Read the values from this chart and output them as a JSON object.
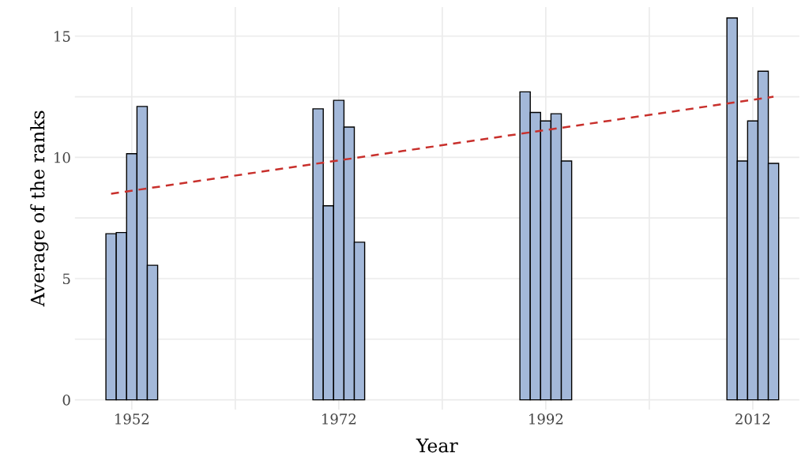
{
  "chart_data": {
    "type": "bar",
    "xlabel": "Year",
    "ylabel": "Average of the ranks",
    "series": [
      {
        "color": "#a3b8d9",
        "x": [
          1950,
          1951,
          1952,
          1953,
          1954,
          1970,
          1971,
          1972,
          1973,
          1974,
          1990,
          1991,
          1992,
          1993,
          1994,
          2010,
          2011,
          2012,
          2013,
          2014
        ],
        "values": [
          6.85,
          6.9,
          10.15,
          12.1,
          5.55,
          12.0,
          8.0,
          12.35,
          11.25,
          6.5,
          12.7,
          11.85,
          11.5,
          11.8,
          9.85,
          15.75,
          9.85,
          11.5,
          13.55,
          9.75
        ]
      },
      {
        "type": "line",
        "color": "#c8302c",
        "line_style": "dashed",
        "x": [
          1950,
          2014
        ],
        "values": [
          8.5,
          12.5
        ]
      }
    ],
    "xlim": [
      1946.5,
      2016.5
    ],
    "ylim": [
      -0.4,
      16.2
    ],
    "xticks": [
      1952,
      {
        "value": 1962,
        "label": null
      },
      1972,
      {
        "value": 1982,
        "label": null
      },
      1992,
      {
        "value": 2002,
        "label": null
      },
      2012
    ],
    "yticks": [
      0,
      {
        "value": 2.5,
        "label": null
      },
      5,
      {
        "value": 7.5,
        "label": null
      },
      10,
      {
        "value": 12.5,
        "label": null
      },
      15
    ],
    "grid": true,
    "legend": false
  }
}
